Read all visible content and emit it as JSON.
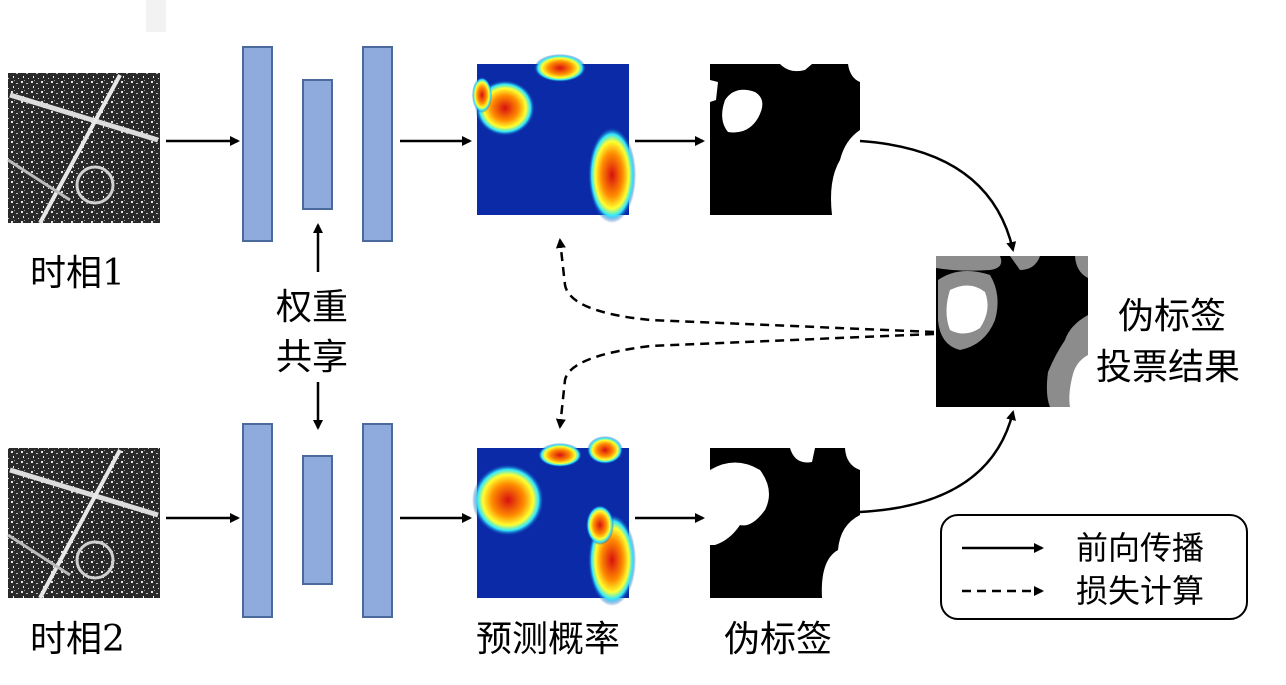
{
  "labels": {
    "phase1": "时相1",
    "phase2": "时相2",
    "shared_weights_line1": "权重",
    "shared_weights_line2": "共享",
    "pred_prob": "预测概率",
    "pseudo_label": "伪标签",
    "vote_line1": "伪标签",
    "vote_line2": "投票结果"
  },
  "legend": {
    "forward": "前向传播",
    "loss": "损失计算"
  },
  "colors": {
    "encoder_fill": "#8faadc",
    "encoder_stroke": "#4a6a9c",
    "arrow": "#000000",
    "heat_low": "#0a2aa8",
    "heat_high": "#d81010",
    "mask_fg": "#ffffff",
    "mask_bg": "#000000",
    "vote_gray": "#8c8c8c"
  }
}
